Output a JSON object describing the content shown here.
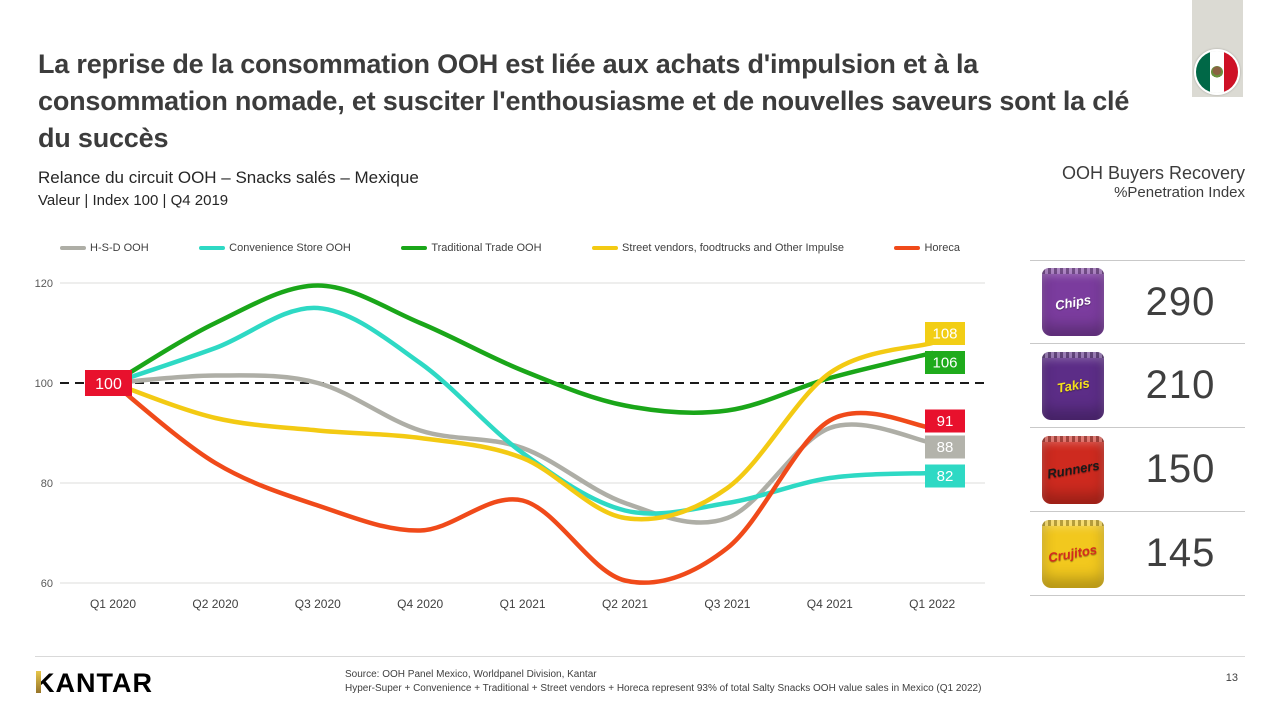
{
  "header": {
    "title": "La reprise de la consommation OOH est liée aux achats d'impulsion et à la consommation nomade, et susciter l'enthousiasme et de nouvelles saveurs sont la clé du succès",
    "subtitle_line1": "Relance du circuit OOH – Snacks salés – Mexique",
    "subtitle_line2": "Valeur | Index 100 | Q4 2019",
    "right_title_line1": "OOH Buyers Recovery",
    "right_title_line2": "%Penetration Index",
    "flag": "mexico-flag"
  },
  "chart_data": {
    "type": "line",
    "categories": [
      "Q1 2020",
      "Q2 2020",
      "Q3 2020",
      "Q4 2020",
      "Q1 2021",
      "Q2 2021",
      "Q3 2021",
      "Q4 2021",
      "Q1 2022"
    ],
    "ylim": [
      60,
      120
    ],
    "yticks": [
      120,
      100,
      80,
      60
    ],
    "grid": true,
    "legend_position": "top",
    "baseline": {
      "value": 100,
      "label": "100",
      "label_bg": "#e8112d",
      "style": "dashed"
    },
    "series": [
      {
        "name": "H-S-D OOH",
        "color": "#aeaea6",
        "values": [
          100,
          101.5,
          100,
          90.5,
          87,
          76,
          73,
          91,
          88
        ],
        "end_label": "88",
        "end_label_bg": "#b3b3ab"
      },
      {
        "name": "Convenience Store OOH",
        "color": "#2ed9c4",
        "values": [
          100,
          107,
          115,
          104,
          86,
          74.5,
          76,
          81,
          82
        ],
        "end_label": "82",
        "end_label_bg": "#2ed9c4"
      },
      {
        "name": "Traditional Trade OOH",
        "color": "#1aa619",
        "values": [
          100,
          112,
          119.5,
          112,
          102.5,
          95.5,
          94.5,
          101,
          106
        ],
        "end_label": "106",
        "end_label_bg": "#1fab1c"
      },
      {
        "name": "Street vendors, foodtrucks and Other Impulse",
        "color": "#f3ca13",
        "values": [
          100,
          93,
          90.5,
          89,
          85,
          73,
          79,
          102,
          108
        ],
        "end_label": "108",
        "end_label_bg": "#f2ce15"
      },
      {
        "name": "Horeca",
        "color": "#f04a1a",
        "values": [
          100,
          84,
          75.5,
          70.5,
          76.5,
          60.5,
          67,
          92.5,
          91
        ],
        "end_label": "91",
        "end_label_bg": "#e8112d"
      }
    ]
  },
  "products": {
    "rows": [
      {
        "brand": "Chips",
        "value": "290",
        "bag_color": "#7b3c9e",
        "brand_color": "#ffffff"
      },
      {
        "brand": "Takis",
        "value": "210",
        "bag_color": "#5c2d87",
        "brand_color": "#f5e11a"
      },
      {
        "brand": "Runners",
        "value": "150",
        "bag_color": "#ce2a1f",
        "brand_color": "#1a1a1a"
      },
      {
        "brand": "Crujitos",
        "value": "145",
        "bag_color": "#f2c81e",
        "brand_color": "#d42a1e"
      }
    ]
  },
  "footer": {
    "logo_text": "KANTAR",
    "source_line1": "Source: OOH Panel Mexico, Worldpanel Division, Kantar",
    "source_line2": "Hyper-Super + Convenience + Traditional + Street vendors + Horeca represent 93% of total Salty Snacks OOH  value sales in Mexico (Q1 2022)",
    "page_number": "13"
  },
  "colors": {
    "accent_red": "#e8112d",
    "grid_line": "#dcdcdb",
    "dashed_line": "#1a1a1a",
    "text_dark": "#3c3c3c"
  }
}
